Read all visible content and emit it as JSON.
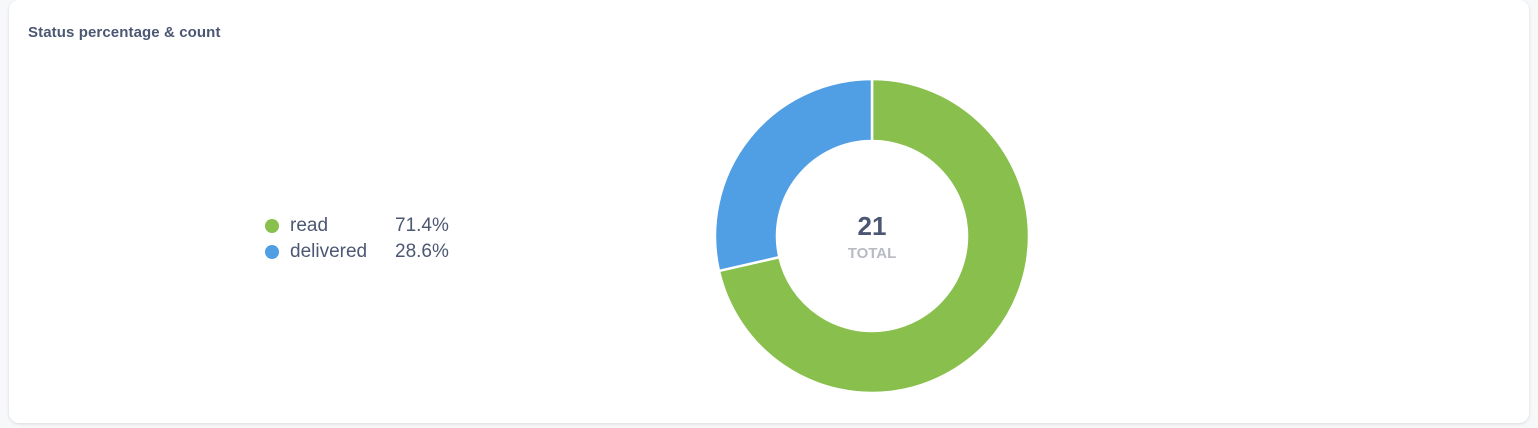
{
  "card": {
    "title": "Status percentage & count"
  },
  "chart_data": {
    "type": "pie",
    "donut": true,
    "categories": [
      "read",
      "delivered"
    ],
    "values": [
      15,
      6
    ],
    "percent_labels": [
      "71.4%",
      "28.6%"
    ],
    "colors": [
      "#88bf4d",
      "#509ee3"
    ],
    "total_value": "21",
    "total_label": "TOTAL",
    "legend_position": "left"
  }
}
